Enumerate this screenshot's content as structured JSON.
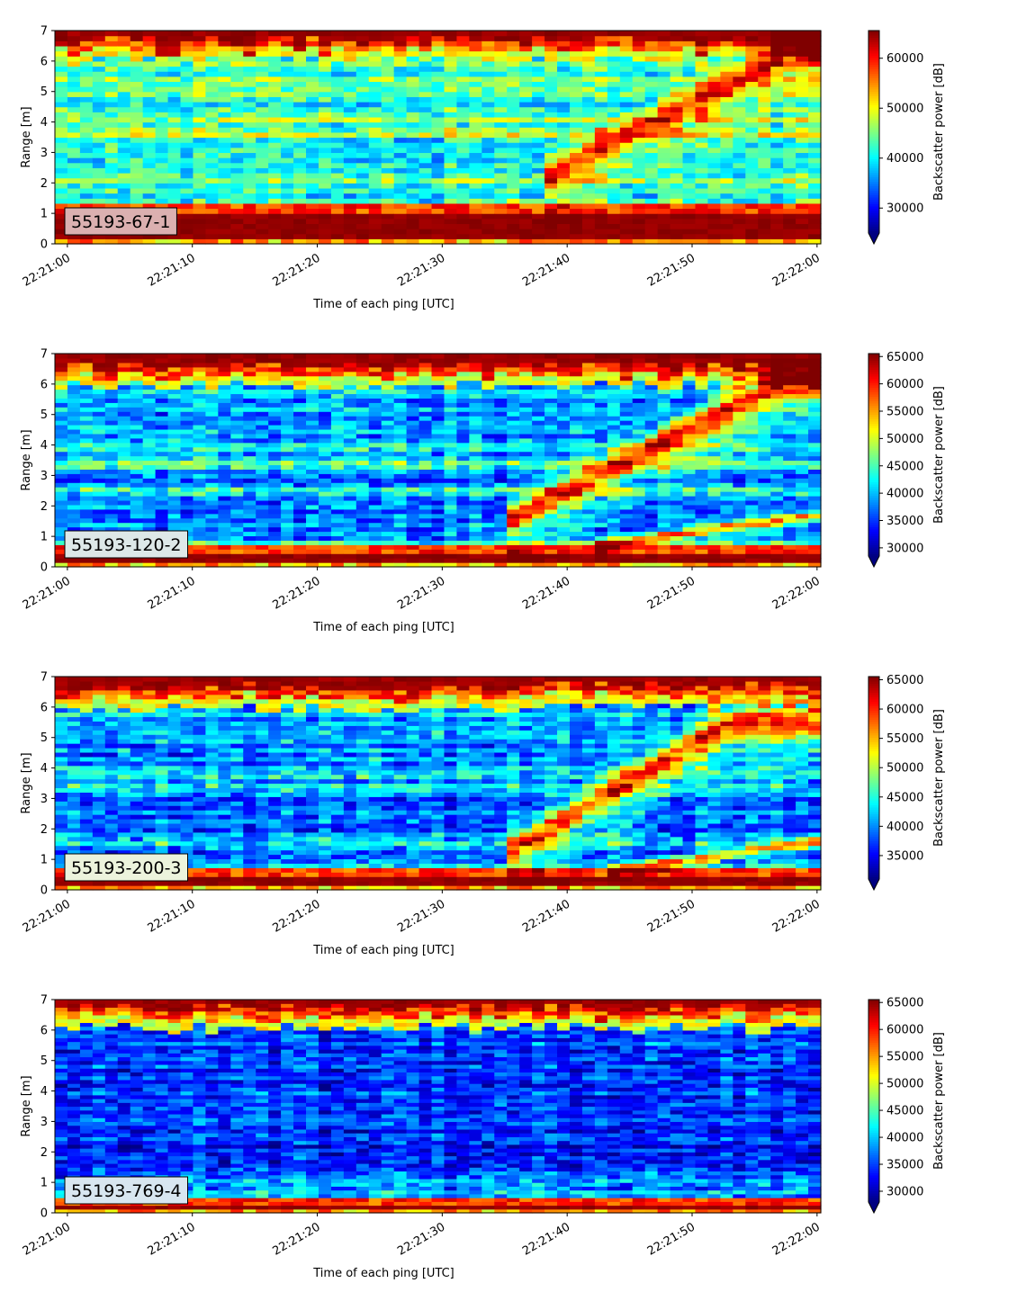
{
  "chart_data": [
    {
      "type": "heatmap",
      "id_label": "55193-67-1",
      "id_box_color": "#dbb0b0",
      "xlabel": "Time of each ping [UTC]",
      "ylabel": "Range [m]",
      "colorbar_label": "Backscatter power [dB]",
      "xticks": [
        "22:21:00",
        "22:21:10",
        "22:21:20",
        "22:21:30",
        "22:21:40",
        "22:21:50",
        "22:22:00"
      ],
      "xlim_seconds": [
        -1,
        60.3
      ],
      "yticks": [
        0,
        1,
        2,
        3,
        4,
        5,
        6,
        7
      ],
      "ylim": [
        0,
        7
      ],
      "clim": [
        25000,
        65535
      ],
      "cticks": [
        30000,
        40000,
        50000,
        60000
      ],
      "colormap": "jet",
      "pings": 61,
      "range_bins": 42,
      "seed": 11,
      "features": {
        "surface_band": [
          0.25,
          1.05
        ],
        "top_band_start": 6.35,
        "baseline": 0.38,
        "upper_noise": 0.45,
        "moving_layer": {
          "t_start": 38,
          "r_start": 2.2,
          "r_end": 6.3,
          "duration": 20,
          "strength": 0.4
        },
        "bottom_trail": null,
        "mid_layers": [
          1.3,
          2.1,
          3.6,
          4.1
        ]
      }
    },
    {
      "type": "heatmap",
      "id_label": "55193-120-2",
      "id_box_color": "#dde8e8",
      "xlabel": "Time of each ping [UTC]",
      "ylabel": "Range [m]",
      "colorbar_label": "Backscatter power [dB]",
      "xticks": [
        "22:21:00",
        "22:21:10",
        "22:21:20",
        "22:21:30",
        "22:21:40",
        "22:21:50",
        "22:22:00"
      ],
      "xlim_seconds": [
        -1,
        60.3
      ],
      "yticks": [
        0,
        1,
        2,
        3,
        4,
        5,
        6,
        7
      ],
      "ylim": [
        0,
        7
      ],
      "clim": [
        28500,
        65535
      ],
      "cticks": [
        30000,
        35000,
        40000,
        45000,
        50000,
        55000,
        60000,
        65000
      ],
      "colormap": "jet",
      "pings": 61,
      "range_bins": 48,
      "seed": 23,
      "features": {
        "surface_band": [
          0.2,
          0.5
        ],
        "top_band_start": 6.3,
        "baseline": 0.25,
        "upper_noise": 0.3,
        "moving_layer": {
          "t_start": 35,
          "r_start": 1.5,
          "r_end": 6.0,
          "duration": 22,
          "strength": 0.55
        },
        "bottom_trail": {
          "t_start": 42,
          "r_start": 0.7,
          "r_end": 1.7,
          "duration": 18
        },
        "mid_layers": [
          0.75,
          2.5,
          3.4,
          4.0
        ]
      }
    },
    {
      "type": "heatmap",
      "id_label": "55193-200-3",
      "id_box_color": "#ecf3dc",
      "xlabel": "Time of each ping [UTC]",
      "ylabel": "Range [m]",
      "colorbar_label": "Backscatter power [dB]",
      "xticks": [
        "22:21:00",
        "22:21:10",
        "22:21:20",
        "22:21:30",
        "22:21:40",
        "22:21:50",
        "22:22:00"
      ],
      "xlim_seconds": [
        -1,
        60.3
      ],
      "yticks": [
        0,
        1,
        2,
        3,
        4,
        5,
        6,
        7
      ],
      "ylim": [
        0,
        7
      ],
      "clim": [
        31000,
        65535
      ],
      "cticks": [
        35000,
        40000,
        45000,
        50000,
        55000,
        60000,
        65000
      ],
      "colormap": "jet",
      "pings": 61,
      "range_bins": 48,
      "seed": 37,
      "features": {
        "surface_band": [
          0.15,
          0.45
        ],
        "top_band_start": 6.35,
        "baseline": 0.22,
        "upper_noise": 0.3,
        "moving_layer": {
          "t_start": 35,
          "r_start": 1.2,
          "r_end": 5.5,
          "duration": 18,
          "strength": 0.55
        },
        "bottom_trail": {
          "t_start": 43,
          "r_start": 0.6,
          "r_end": 1.6,
          "duration": 17
        },
        "mid_layers": [
          0.8,
          1.6,
          3.3,
          3.8
        ]
      }
    },
    {
      "type": "heatmap",
      "id_label": "55193-769-4",
      "id_box_color": "#d8e6f0",
      "xlabel": "Time of each ping [UTC]",
      "ylabel": "Range [m]",
      "colorbar_label": "Backscatter power [dB]",
      "xticks": [
        "22:21:00",
        "22:21:10",
        "22:21:20",
        "22:21:30",
        "22:21:40",
        "22:21:50",
        "22:22:00"
      ],
      "xlim_seconds": [
        -1,
        60.3
      ],
      "yticks": [
        0,
        1,
        2,
        3,
        4,
        5,
        6,
        7
      ],
      "ylim": [
        0,
        7
      ],
      "clim": [
        28000,
        65535
      ],
      "cticks": [
        30000,
        35000,
        40000,
        45000,
        50000,
        55000,
        60000,
        65000
      ],
      "colormap": "jet",
      "pings": 61,
      "range_bins": 56,
      "seed": 51,
      "features": {
        "surface_band": [
          0.15,
          0.3
        ],
        "top_band_start": 6.45,
        "baseline": 0.15,
        "upper_noise": 0.2,
        "moving_layer": null,
        "bottom_trail": null,
        "mid_layers": [
          0.6,
          1.0
        ]
      }
    }
  ]
}
